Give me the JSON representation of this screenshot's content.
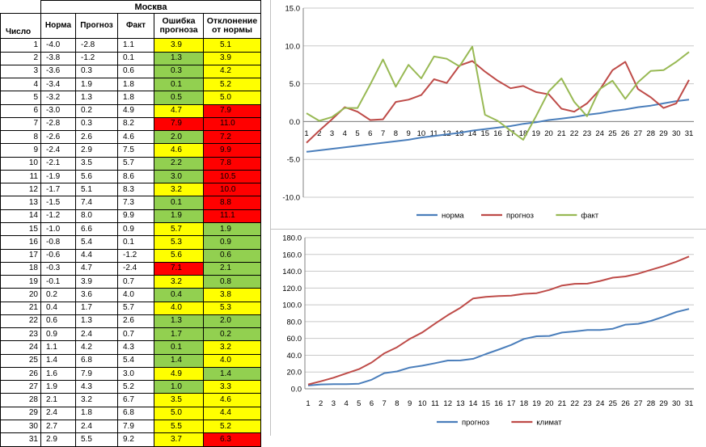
{
  "table": {
    "city": "Москва",
    "headers": {
      "day": "Число",
      "norm": "Норма",
      "forecast": "Прогноз",
      "fact": "Факт",
      "error": "Ошибка прогноза",
      "deviation": "Отклонение от нормы"
    },
    "colors": {
      "green": "#92d050",
      "yellow": "#ffff00",
      "red": "#ff0000"
    },
    "rows": [
      {
        "day": "1",
        "norm": "-4.0",
        "forecast": "-2.8",
        "fact": "1.1",
        "error": "3.9",
        "deviation": "5.1",
        "error_color": "yellow",
        "deviation_color": "yellow"
      },
      {
        "day": "2",
        "norm": "-3.8",
        "forecast": "-1.2",
        "fact": "0.1",
        "error": "1.3",
        "deviation": "3.9",
        "error_color": "green",
        "deviation_color": "yellow"
      },
      {
        "day": "3",
        "norm": "-3.6",
        "forecast": "0.3",
        "fact": "0.6",
        "error": "0.3",
        "deviation": "4.2",
        "error_color": "green",
        "deviation_color": "yellow"
      },
      {
        "day": "4",
        "norm": "-3.4",
        "forecast": "1.9",
        "fact": "1.8",
        "error": "0.1",
        "deviation": "5.2",
        "error_color": "green",
        "deviation_color": "yellow"
      },
      {
        "day": "5",
        "norm": "-3.2",
        "forecast": "1.3",
        "fact": "1.8",
        "error": "0.5",
        "deviation": "5.0",
        "error_color": "green",
        "deviation_color": "yellow"
      },
      {
        "day": "6",
        "norm": "-3.0",
        "forecast": "0.2",
        "fact": "4.9",
        "error": "4.7",
        "deviation": "7.9",
        "error_color": "yellow",
        "deviation_color": "red"
      },
      {
        "day": "7",
        "norm": "-2.8",
        "forecast": "0.3",
        "fact": "8.2",
        "error": "7.9",
        "deviation": "11.0",
        "error_color": "red",
        "deviation_color": "red"
      },
      {
        "day": "8",
        "norm": "-2.6",
        "forecast": "2.6",
        "fact": "4.6",
        "error": "2.0",
        "deviation": "7.2",
        "error_color": "green",
        "deviation_color": "red"
      },
      {
        "day": "9",
        "norm": "-2.4",
        "forecast": "2.9",
        "fact": "7.5",
        "error": "4.6",
        "deviation": "9.9",
        "error_color": "yellow",
        "deviation_color": "red"
      },
      {
        "day": "10",
        "norm": "-2.1",
        "forecast": "3.5",
        "fact": "5.7",
        "error": "2.2",
        "deviation": "7.8",
        "error_color": "green",
        "deviation_color": "red"
      },
      {
        "day": "11",
        "norm": "-1.9",
        "forecast": "5.6",
        "fact": "8.6",
        "error": "3.0",
        "deviation": "10.5",
        "error_color": "green",
        "deviation_color": "red"
      },
      {
        "day": "12",
        "norm": "-1.7",
        "forecast": "5.1",
        "fact": "8.3",
        "error": "3.2",
        "deviation": "10.0",
        "error_color": "yellow",
        "deviation_color": "red"
      },
      {
        "day": "13",
        "norm": "-1.5",
        "forecast": "7.4",
        "fact": "7.3",
        "error": "0.1",
        "deviation": "8.8",
        "error_color": "green",
        "deviation_color": "red"
      },
      {
        "day": "14",
        "norm": "-1.2",
        "forecast": "8.0",
        "fact": "9.9",
        "error": "1.9",
        "deviation": "11.1",
        "error_color": "green",
        "deviation_color": "red"
      },
      {
        "day": "15",
        "norm": "-1.0",
        "forecast": "6.6",
        "fact": "0.9",
        "error": "5.7",
        "deviation": "1.9",
        "error_color": "yellow",
        "deviation_color": "green"
      },
      {
        "day": "16",
        "norm": "-0.8",
        "forecast": "5.4",
        "fact": "0.1",
        "error": "5.3",
        "deviation": "0.9",
        "error_color": "yellow",
        "deviation_color": "green"
      },
      {
        "day": "17",
        "norm": "-0.6",
        "forecast": "4.4",
        "fact": "-1.2",
        "error": "5.6",
        "deviation": "0.6",
        "error_color": "yellow",
        "deviation_color": "green"
      },
      {
        "day": "18",
        "norm": "-0.3",
        "forecast": "4.7",
        "fact": "-2.4",
        "error": "7.1",
        "deviation": "2.1",
        "error_color": "red",
        "deviation_color": "green"
      },
      {
        "day": "19",
        "norm": "-0.1",
        "forecast": "3.9",
        "fact": "0.7",
        "error": "3.2",
        "deviation": "0.8",
        "error_color": "yellow",
        "deviation_color": "green"
      },
      {
        "day": "20",
        "norm": "0.2",
        "forecast": "3.6",
        "fact": "4.0",
        "error": "0.4",
        "deviation": "3.8",
        "error_color": "green",
        "deviation_color": "yellow"
      },
      {
        "day": "21",
        "norm": "0.4",
        "forecast": "1.7",
        "fact": "5.7",
        "error": "4.0",
        "deviation": "5.3",
        "error_color": "yellow",
        "deviation_color": "yellow"
      },
      {
        "day": "22",
        "norm": "0.6",
        "forecast": "1.3",
        "fact": "2.6",
        "error": "1.3",
        "deviation": "2.0",
        "error_color": "green",
        "deviation_color": "green"
      },
      {
        "day": "23",
        "norm": "0.9",
        "forecast": "2.4",
        "fact": "0.7",
        "error": "1.7",
        "deviation": "0.2",
        "error_color": "green",
        "deviation_color": "green"
      },
      {
        "day": "24",
        "norm": "1.1",
        "forecast": "4.2",
        "fact": "4.3",
        "error": "0.1",
        "deviation": "3.2",
        "error_color": "green",
        "deviation_color": "yellow"
      },
      {
        "day": "25",
        "norm": "1.4",
        "forecast": "6.8",
        "fact": "5.4",
        "error": "1.4",
        "deviation": "4.0",
        "error_color": "green",
        "deviation_color": "yellow"
      },
      {
        "day": "26",
        "norm": "1.6",
        "forecast": "7.9",
        "fact": "3.0",
        "error": "4.9",
        "deviation": "1.4",
        "error_color": "yellow",
        "deviation_color": "green"
      },
      {
        "day": "27",
        "norm": "1.9",
        "forecast": "4.3",
        "fact": "5.2",
        "error": "1.0",
        "deviation": "3.3",
        "error_color": "green",
        "deviation_color": "yellow"
      },
      {
        "day": "28",
        "norm": "2.1",
        "forecast": "3.2",
        "fact": "6.7",
        "error": "3.5",
        "deviation": "4.6",
        "error_color": "yellow",
        "deviation_color": "yellow"
      },
      {
        "day": "29",
        "norm": "2.4",
        "forecast": "1.8",
        "fact": "6.8",
        "error": "5.0",
        "deviation": "4.4",
        "error_color": "yellow",
        "deviation_color": "yellow"
      },
      {
        "day": "30",
        "norm": "2.7",
        "forecast": "2.4",
        "fact": "7.9",
        "error": "5.5",
        "deviation": "5.2",
        "error_color": "yellow",
        "deviation_color": "yellow"
      },
      {
        "day": "31",
        "norm": "2.9",
        "forecast": "5.5",
        "fact": "9.2",
        "error": "3.7",
        "deviation": "6.3",
        "error_color": "yellow",
        "deviation_color": "red"
      }
    ]
  },
  "chart_data": [
    {
      "type": "line",
      "title": "",
      "xlabel": "",
      "ylabel": "",
      "categories": [
        "1",
        "2",
        "3",
        "4",
        "5",
        "6",
        "7",
        "8",
        "9",
        "10",
        "11",
        "12",
        "13",
        "14",
        "15",
        "16",
        "17",
        "18",
        "19",
        "20",
        "21",
        "22",
        "23",
        "24",
        "25",
        "26",
        "27",
        "28",
        "29",
        "30",
        "31"
      ],
      "yticks": [
        "15.0",
        "10.0",
        "5.0",
        "0.0",
        "-5.0",
        "-10.0"
      ],
      "ylim": [
        -10,
        15
      ],
      "grid": true,
      "legend": "bottom",
      "series": [
        {
          "name": "норма",
          "color": "#4a7ebb",
          "values": [
            -4.0,
            -3.8,
            -3.6,
            -3.4,
            -3.2,
            -3.0,
            -2.8,
            -2.6,
            -2.4,
            -2.1,
            -1.9,
            -1.7,
            -1.5,
            -1.2,
            -1.0,
            -0.8,
            -0.6,
            -0.3,
            -0.1,
            0.2,
            0.4,
            0.6,
            0.9,
            1.1,
            1.4,
            1.6,
            1.9,
            2.1,
            2.4,
            2.7,
            2.9
          ]
        },
        {
          "name": "прогноз",
          "color": "#be4b48",
          "values": [
            -2.8,
            -1.2,
            0.3,
            1.9,
            1.3,
            0.2,
            0.3,
            2.6,
            2.9,
            3.5,
            5.6,
            5.1,
            7.4,
            8.0,
            6.6,
            5.4,
            4.4,
            4.7,
            3.9,
            3.6,
            1.7,
            1.3,
            2.4,
            4.2,
            6.8,
            7.9,
            4.3,
            3.2,
            1.8,
            2.4,
            5.5
          ]
        },
        {
          "name": "факт",
          "color": "#98b954",
          "values": [
            1.1,
            0.1,
            0.6,
            1.8,
            1.8,
            4.9,
            8.2,
            4.6,
            7.5,
            5.7,
            8.6,
            8.3,
            7.3,
            9.9,
            0.9,
            0.1,
            -1.2,
            -2.4,
            0.7,
            4.0,
            5.7,
            2.6,
            0.7,
            4.3,
            5.4,
            3.0,
            5.2,
            6.7,
            6.8,
            7.9,
            9.2
          ]
        }
      ]
    },
    {
      "type": "line",
      "title": "",
      "xlabel": "",
      "ylabel": "",
      "categories": [
        "1",
        "2",
        "3",
        "4",
        "5",
        "6",
        "7",
        "8",
        "9",
        "10",
        "11",
        "12",
        "13",
        "14",
        "15",
        "16",
        "17",
        "18",
        "19",
        "20",
        "21",
        "22",
        "23",
        "24",
        "25",
        "26",
        "27",
        "28",
        "29",
        "30",
        "31"
      ],
      "yticks": [
        "180.0",
        "160.0",
        "140.0",
        "120.0",
        "100.0",
        "80.0",
        "60.0",
        "40.0",
        "20.0",
        "0.0"
      ],
      "ylim": [
        0,
        180
      ],
      "grid": true,
      "legend": "bottom",
      "series": [
        {
          "name": "прогноз",
          "color": "#4a7ebb",
          "values": [
            3.9,
            5.2,
            5.5,
            5.6,
            6.1,
            10.8,
            18.7,
            20.7,
            25.3,
            27.5,
            30.5,
            33.7,
            33.8,
            35.7,
            41.4,
            46.7,
            52.3,
            59.4,
            62.6,
            63.0,
            67.0,
            68.3,
            70.0,
            70.1,
            71.5,
            76.4,
            77.4,
            80.9,
            85.9,
            91.4,
            95.1
          ]
        },
        {
          "name": "климат",
          "color": "#be4b48",
          "values": [
            5.1,
            9.0,
            13.2,
            18.4,
            23.4,
            31.3,
            42.3,
            49.5,
            59.4,
            67.2,
            77.7,
            87.7,
            96.5,
            107.6,
            109.5,
            110.4,
            111.0,
            113.1,
            113.9,
            117.7,
            123.0,
            125.0,
            125.2,
            128.4,
            132.4,
            133.8,
            137.1,
            141.7,
            146.1,
            151.3,
            157.6
          ]
        }
      ]
    }
  ]
}
